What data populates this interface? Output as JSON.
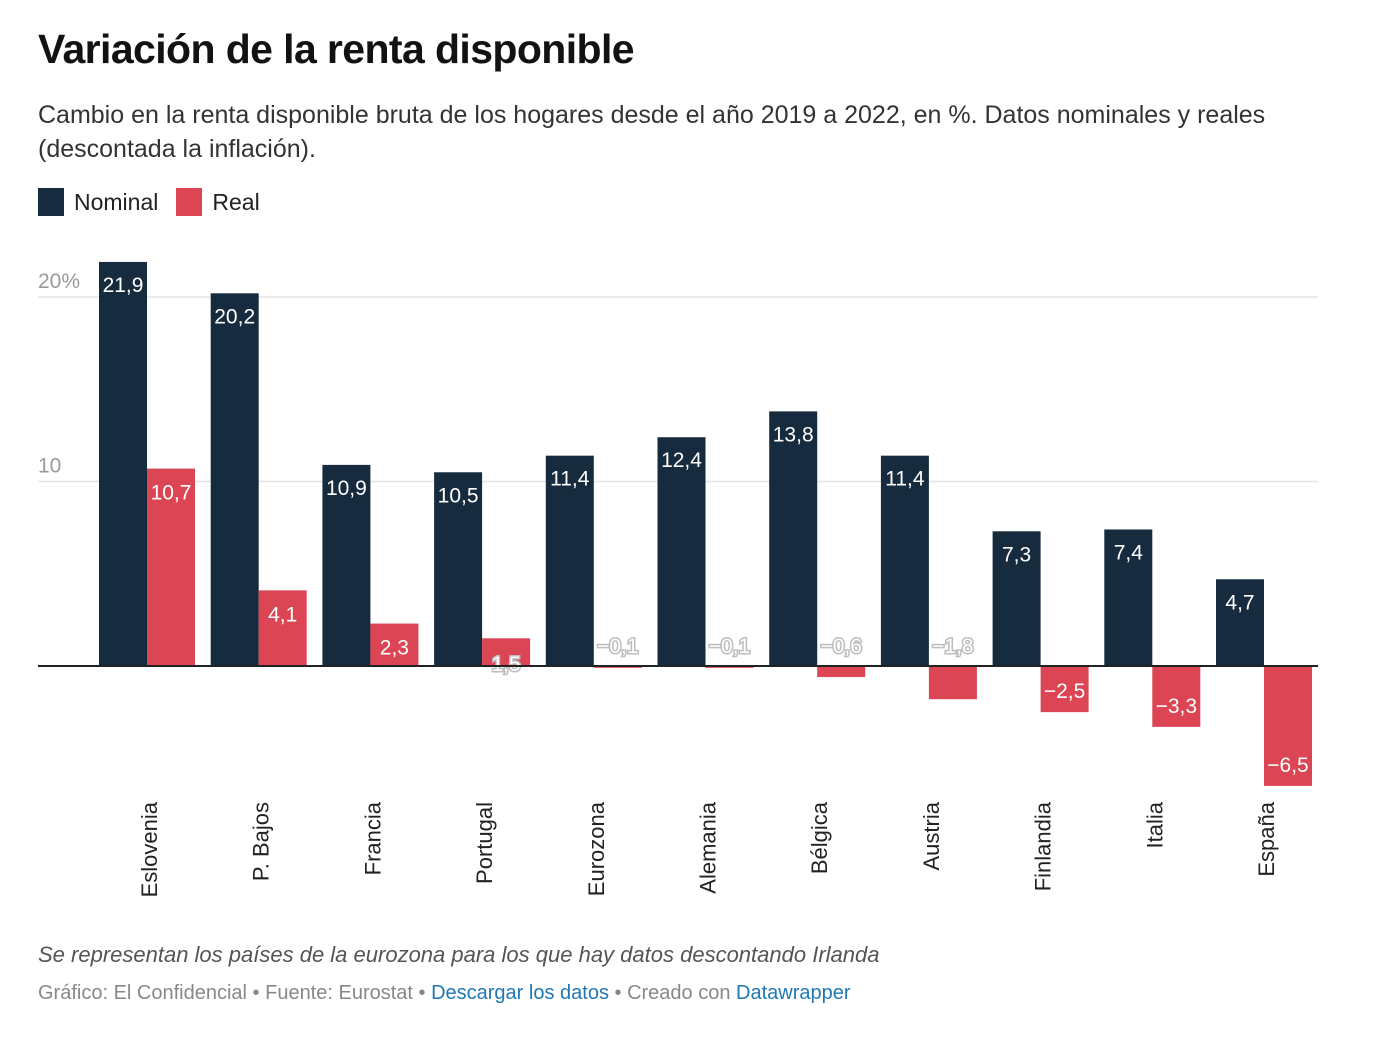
{
  "header": {
    "title": "Variación de la renta disponible",
    "subtitle": "Cambio en la renta disponible bruta de los hogares desde el año 2019 a 2022, en %. Datos nominales y reales (descontada la inflación)."
  },
  "legend": {
    "items": [
      {
        "label": "Nominal",
        "color": "#172b3e"
      },
      {
        "label": "Real",
        "color": "#dc4554"
      }
    ]
  },
  "footer": {
    "note": "Se representan los países de la eurozona para los que hay datos descontando Irlanda",
    "credit_prefix": "Gráfico: El Confidencial • Fuente: Eurostat • ",
    "download_label": "Descargar los datos",
    "created_prefix": " • Creado con ",
    "datawrapper_label": "Datawrapper"
  },
  "chart_data": {
    "type": "bar",
    "title": "Variación de la renta disponible",
    "xlabel": "",
    "ylabel": "",
    "ylim": [
      -6.5,
      21.9
    ],
    "grid": true,
    "legend_position": "top-left",
    "categories": [
      "Eslovenia",
      "P. Bajos",
      "Francia",
      "Portugal",
      "Eurozona",
      "Alemania",
      "Bélgica",
      "Austria",
      "Finlandia",
      "Italia",
      "España"
    ],
    "series": [
      {
        "name": "Nominal",
        "color": "#172b3e",
        "values": [
          21.9,
          20.2,
          10.9,
          10.5,
          11.4,
          12.4,
          13.8,
          11.4,
          7.3,
          7.4,
          4.7
        ],
        "labels": [
          "21,9",
          "20,2",
          "10,9",
          "10,5",
          "11,4",
          "12,4",
          "13,8",
          "11,4",
          "7,3",
          "7,4",
          "4,7"
        ]
      },
      {
        "name": "Real",
        "color": "#dc4554",
        "values": [
          10.7,
          4.1,
          2.3,
          1.5,
          -0.1,
          -0.1,
          -0.6,
          -1.8,
          -2.5,
          -3.3,
          -6.5
        ],
        "labels": [
          "10,7",
          "4,1",
          "2,3",
          "1,5",
          "−0,1",
          "−0,1",
          "−0,6",
          "−1,8",
          "−2,5",
          "−3,3",
          "−6,5"
        ]
      }
    ],
    "y_ticks": [
      {
        "value": 20,
        "label": "20%"
      },
      {
        "value": 10,
        "label": "10"
      }
    ]
  }
}
